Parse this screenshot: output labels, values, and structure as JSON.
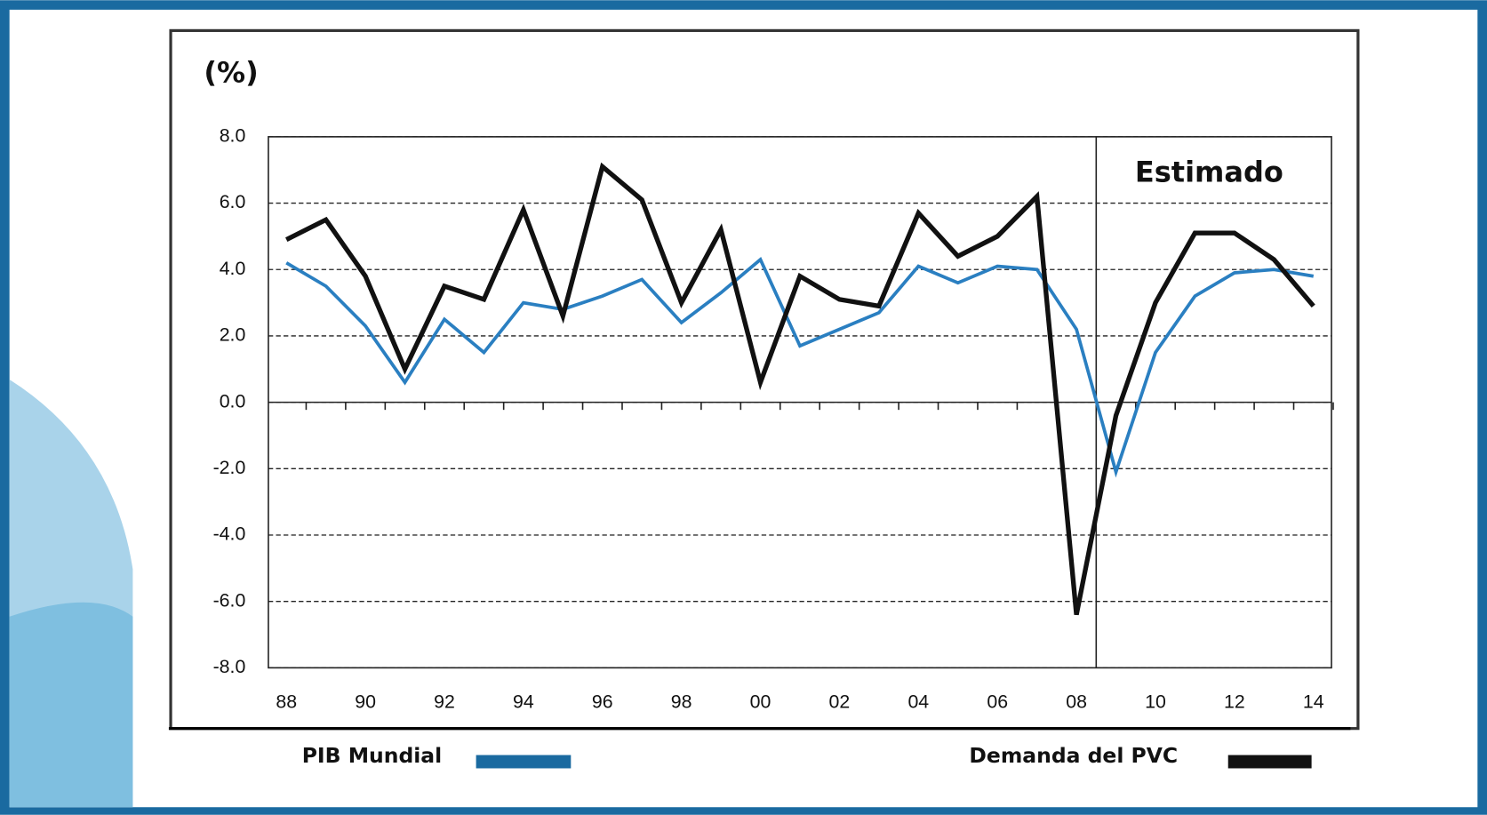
{
  "chart_data": {
    "type": "line",
    "y_label": "(%)",
    "annotation": "Estimado",
    "categories": [
      "88",
      null,
      "90",
      null,
      "92",
      null,
      "94",
      null,
      "96",
      null,
      "98",
      null,
      "00",
      null,
      "02",
      null,
      "04",
      null,
      "06",
      null,
      "08",
      null,
      "10",
      null,
      "12",
      null,
      "14"
    ],
    "series": [
      {
        "name": "PIB Mundial",
        "color": "#2a7fc1",
        "values": [
          4.2,
          3.5,
          2.3,
          0.6,
          2.5,
          1.5,
          3.0,
          2.8,
          3.2,
          3.7,
          2.4,
          3.3,
          4.3,
          1.7,
          2.2,
          2.7,
          4.1,
          3.6,
          4.1,
          4.0,
          2.2,
          -2.1,
          1.5,
          3.2,
          3.9,
          4.0,
          3.8
        ]
      },
      {
        "name": "Demanda del PVC",
        "color": "#111111",
        "values": [
          4.9,
          5.5,
          3.8,
          1.0,
          3.5,
          3.1,
          5.8,
          2.6,
          7.1,
          6.1,
          3.0,
          5.2,
          0.6,
          3.8,
          3.1,
          2.9,
          5.7,
          4.4,
          5.0,
          6.2,
          -6.4,
          -0.4,
          3.0,
          5.1,
          5.1,
          4.3,
          2.9
        ]
      }
    ],
    "ylim": [
      -8,
      8
    ],
    "yticks": [
      {
        "value": -8,
        "label": "-8.0"
      },
      {
        "value": -6,
        "label": "-6.0"
      },
      {
        "value": -4,
        "label": "-4.0"
      },
      {
        "value": -2,
        "label": "-2.0"
      },
      {
        "value": 0,
        "label": "0.0"
      },
      {
        "value": 2,
        "label": "2.0"
      },
      {
        "value": 4,
        "label": "4.0"
      },
      {
        "value": 6,
        "label": "6.0"
      },
      {
        "value": 8,
        "label": "8.0"
      }
    ],
    "grid": true
  }
}
